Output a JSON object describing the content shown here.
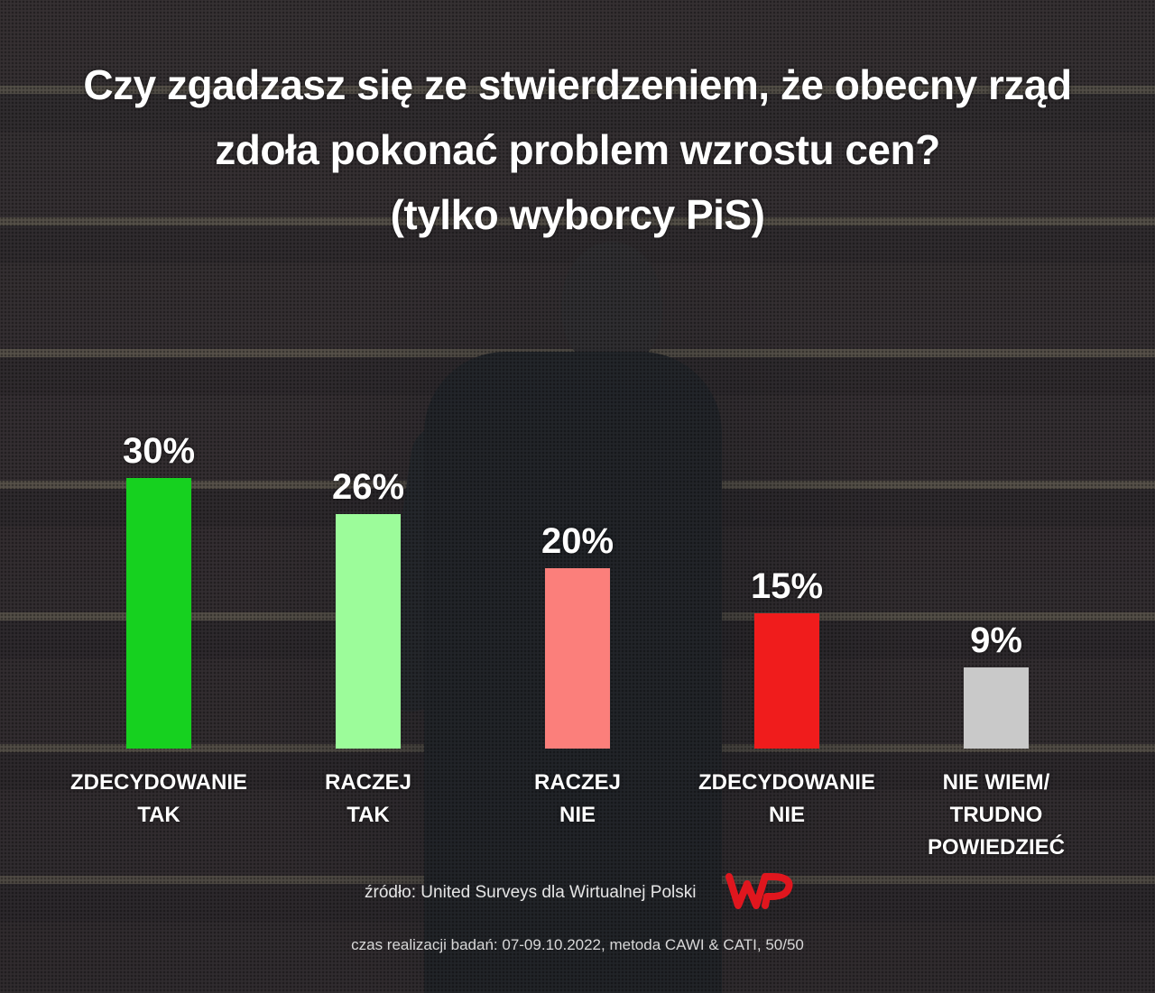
{
  "title_lines": [
    "Czy zgadzasz się ze stwierdzeniem, że obecny rząd",
    "zdoła pokonać problem wzrostu cen?",
    "(tylko wyborcy PiS)"
  ],
  "chart_data": {
    "type": "bar",
    "title": "Czy zgadzasz się ze stwierdzeniem, że obecny rząd zdoła pokonać problem wzrostu cen? (tylko wyborcy PiS)",
    "categories": [
      [
        "ZDECYDOWANIE",
        "TAK"
      ],
      [
        "RACZEJ",
        "TAK"
      ],
      [
        "RACZEJ",
        "NIE"
      ],
      [
        "ZDECYDOWANIE",
        "NIE"
      ],
      [
        "NIE WIEM/",
        "TRUDNO POWIEDZIEĆ"
      ]
    ],
    "values": [
      30,
      26,
      20,
      15,
      9
    ],
    "value_labels": [
      "30%",
      "26%",
      "20%",
      "15%",
      "9%"
    ],
    "colors": [
      "#16d11f",
      "#9cfc9a",
      "#fb7f7b",
      "#f01c1c",
      "#c9c9c9"
    ],
    "unit": "%",
    "grid": false,
    "legend": "none"
  },
  "source_text": "źródło: United Surveys dla Wirtualnej Polski",
  "footnote_text": "czas realizacji badań: 07-09.10.2022, metoda CAWI & CATI, 50/50",
  "logo": {
    "icon": "wp-logo-icon",
    "color": "#e0161e"
  }
}
